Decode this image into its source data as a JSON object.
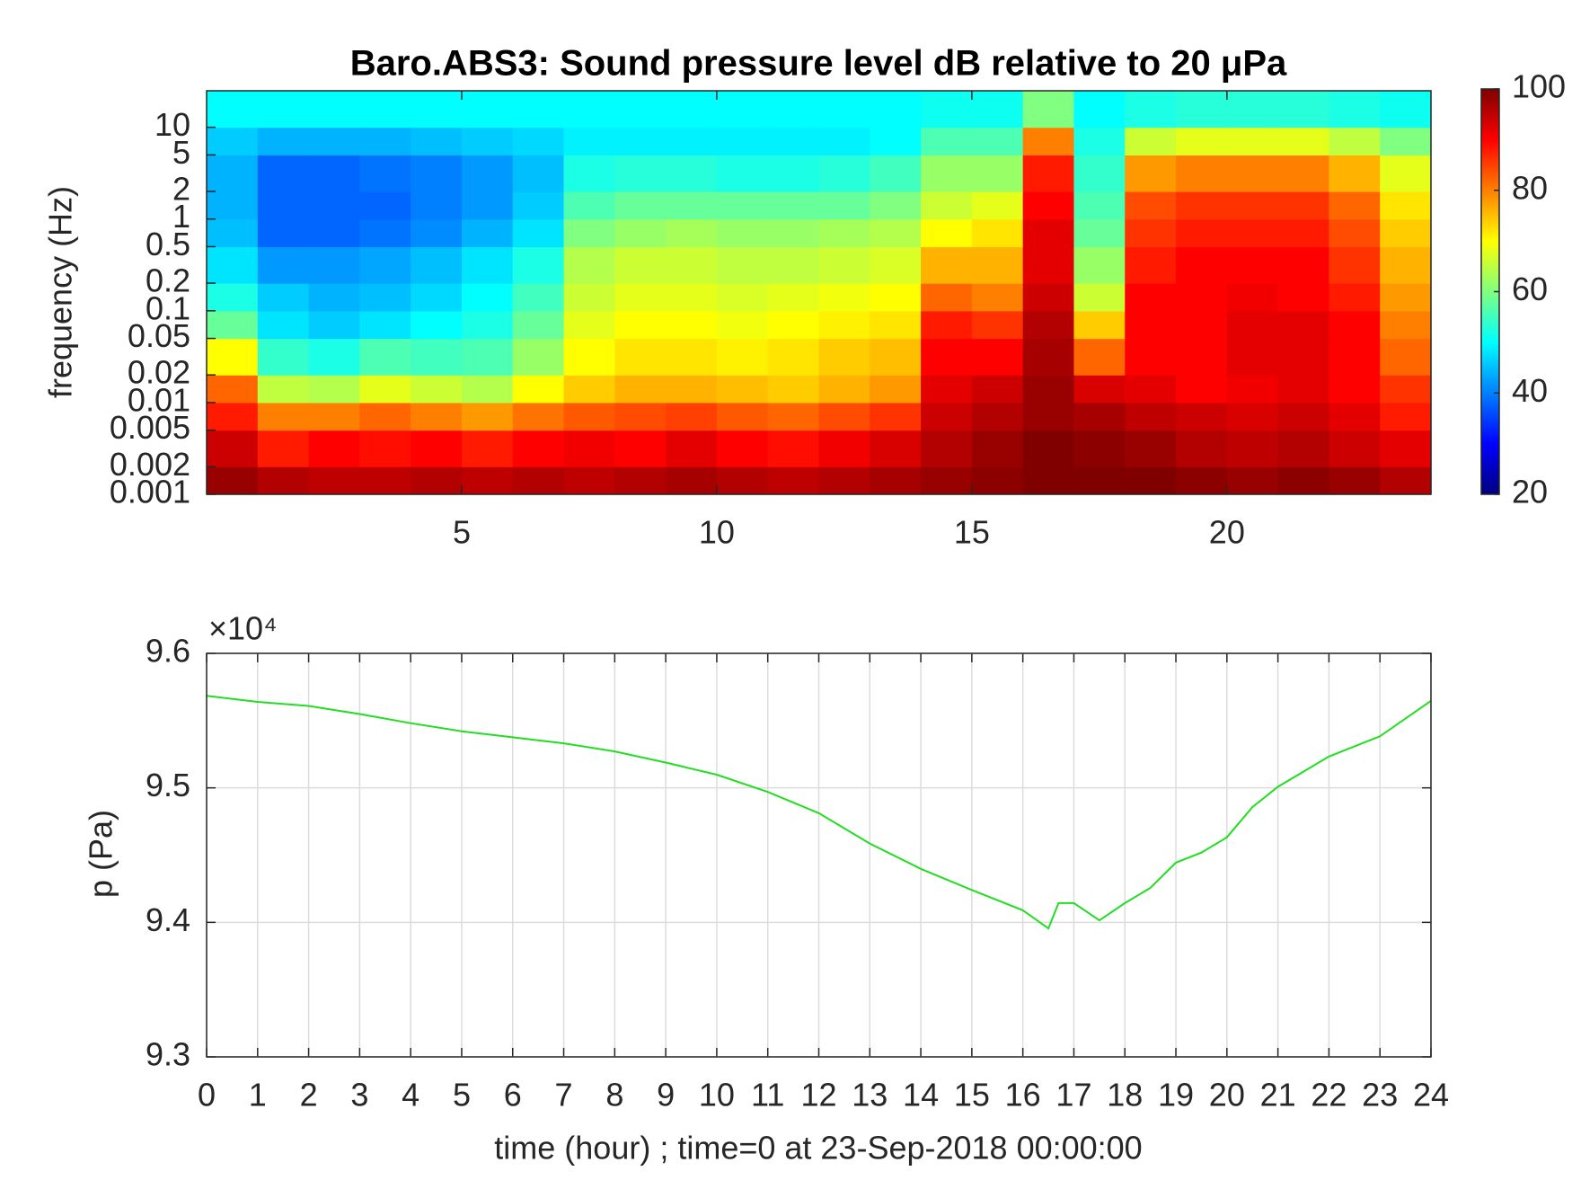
{
  "chart_data": [
    {
      "type": "heatmap",
      "title": "Baro.ABS3: Sound pressure level dB relative to 20 μPa",
      "ylabel": "frequency (Hz)",
      "xlim": [
        0,
        24
      ],
      "xticks": [
        5,
        10,
        15,
        20
      ],
      "ylim": [
        0.001,
        25
      ],
      "log_y": true,
      "yticks": [
        0.001,
        0.002,
        0.005,
        0.01,
        0.02,
        0.05,
        0.1,
        0.2,
        0.5,
        1,
        2,
        5,
        10
      ],
      "xbins": [
        0,
        1,
        2,
        3,
        4,
        5,
        6,
        7,
        8,
        9,
        10,
        11,
        12,
        13,
        14,
        15,
        16,
        17,
        18,
        19,
        20,
        21,
        22,
        23,
        24
      ],
      "ybins": [
        0.001,
        0.002,
        0.005,
        0.01,
        0.02,
        0.05,
        0.1,
        0.2,
        0.5,
        1,
        2,
        5,
        10,
        25
      ],
      "colormap": "jet",
      "clim": [
        20,
        100
      ],
      "cticks": [
        20,
        40,
        60,
        80,
        100
      ],
      "z": [
        [
          98,
          96,
          95,
          95,
          96,
          95,
          96,
          95,
          96,
          97,
          96,
          95,
          96,
          97,
          98,
          99,
          100,
          100,
          100,
          99,
          98,
          99,
          98,
          96
        ],
        [
          94,
          88,
          90,
          89,
          90,
          88,
          90,
          91,
          90,
          92,
          90,
          89,
          91,
          93,
          96,
          98,
          100,
          99,
          98,
          96,
          95,
          96,
          94,
          92
        ],
        [
          88,
          80,
          80,
          82,
          80,
          78,
          81,
          83,
          84,
          85,
          83,
          82,
          84,
          86,
          94,
          96,
          98,
          97,
          95,
          94,
          93,
          94,
          92,
          88
        ],
        [
          82,
          65,
          64,
          68,
          66,
          64,
          70,
          74,
          76,
          76,
          75,
          74,
          76,
          78,
          92,
          94,
          98,
          93,
          92,
          90,
          91,
          92,
          90,
          86
        ],
        [
          70,
          54,
          52,
          56,
          55,
          56,
          62,
          70,
          72,
          72,
          71,
          72,
          74,
          75,
          90,
          90,
          97,
          82,
          90,
          90,
          92,
          92,
          90,
          82
        ],
        [
          58,
          48,
          46,
          48,
          50,
          52,
          58,
          68,
          70,
          70,
          69,
          70,
          71,
          72,
          88,
          86,
          96,
          74,
          90,
          90,
          92,
          92,
          90,
          80
        ],
        [
          52,
          46,
          44,
          45,
          47,
          50,
          55,
          66,
          68,
          68,
          67,
          68,
          69,
          70,
          82,
          80,
          94,
          66,
          90,
          90,
          91,
          90,
          88,
          78
        ],
        [
          48,
          42,
          42,
          43,
          45,
          48,
          52,
          64,
          66,
          66,
          65,
          65,
          66,
          67,
          76,
          76,
          92,
          62,
          88,
          90,
          90,
          90,
          86,
          76
        ],
        [
          45,
          38,
          38,
          39,
          41,
          44,
          48,
          60,
          62,
          63,
          62,
          62,
          63,
          64,
          70,
          72,
          92,
          58,
          86,
          88,
          88,
          88,
          84,
          74
        ],
        [
          44,
          38,
          38,
          38,
          40,
          42,
          46,
          56,
          58,
          58,
          58,
          58,
          58,
          60,
          66,
          68,
          90,
          56,
          84,
          86,
          86,
          86,
          82,
          72
        ],
        [
          44,
          38,
          38,
          39,
          40,
          42,
          45,
          52,
          53,
          53,
          52,
          52,
          53,
          55,
          62,
          62,
          88,
          54,
          78,
          80,
          80,
          80,
          76,
          68
        ],
        [
          46,
          44,
          44,
          44,
          45,
          46,
          47,
          49,
          49,
          49,
          49,
          49,
          49,
          50,
          56,
          56,
          80,
          52,
          66,
          68,
          68,
          68,
          65,
          60
        ],
        [
          50,
          50,
          50,
          50,
          50,
          50,
          50,
          50,
          50,
          50,
          50,
          50,
          50,
          50,
          51,
          51,
          60,
          50,
          52,
          53,
          53,
          53,
          52,
          51
        ]
      ]
    },
    {
      "type": "line",
      "xlabel": "time (hour) ; time=0 at 23-Sep-2018 00:00:00",
      "ylabel": "p (Pa)",
      "y_multiplier": "×10⁴",
      "color": "#22dd22",
      "grid": true,
      "xlim": [
        0,
        24
      ],
      "xticks": [
        0,
        1,
        2,
        3,
        4,
        5,
        6,
        7,
        8,
        9,
        10,
        11,
        12,
        13,
        14,
        15,
        16,
        17,
        18,
        19,
        20,
        21,
        22,
        23,
        24
      ],
      "ylim": [
        93000,
        96000
      ],
      "yticks": [
        {
          "value": 93000,
          "label": "9.3"
        },
        {
          "value": 94000,
          "label": "9.4"
        },
        {
          "value": 95000,
          "label": "9.5"
        },
        {
          "value": 96000,
          "label": "9.6"
        }
      ],
      "x": [
        0,
        1,
        2,
        3,
        4,
        5,
        6,
        7,
        8,
        9,
        10,
        11,
        12,
        13,
        14,
        15,
        16,
        16.5,
        16.7,
        17,
        17.5,
        18,
        18.5,
        19,
        19.5,
        20,
        20.5,
        21,
        22,
        23,
        24
      ],
      "values": [
        95684,
        95639,
        95609,
        95549,
        95481,
        95421,
        95376,
        95331,
        95271,
        95188,
        95098,
        94970,
        94812,
        94586,
        94398,
        94241,
        94090,
        93955,
        94143,
        94143,
        94015,
        94143,
        94256,
        94444,
        94519,
        94632,
        94857,
        95008,
        95233,
        95383,
        95647
      ]
    }
  ]
}
